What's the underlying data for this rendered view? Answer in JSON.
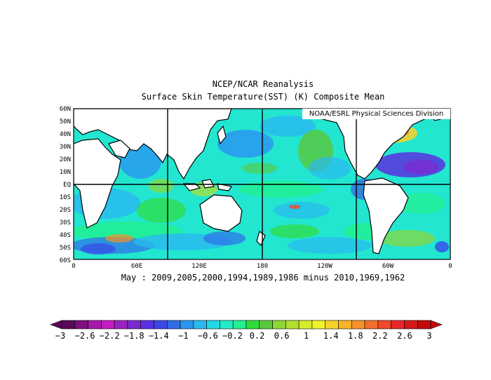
{
  "title_line1": "NCEP/NCAR Reanalysis",
  "title_line2": "Surface Skin Temperature(SST) (K) Composite Mean",
  "credit": "NOAA/ESRL Physical Sciences Division",
  "caption": "May : 2009,2005,2000,1994,1989,1986 minus 2010,1969,1962",
  "lat_labels": [
    "60N",
    "50N",
    "40N",
    "30N",
    "20N",
    "10N",
    "EQ",
    "10S",
    "20S",
    "30S",
    "40S",
    "50S",
    "60S"
  ],
  "lon_labels": [
    "0",
    "60E",
    "120E",
    "180",
    "120W",
    "60W",
    "0"
  ],
  "colorbar": {
    "tick_labels": [
      "-3",
      "-2.6",
      "-2.2",
      "-1.8",
      "-1.4",
      "-1",
      "-0.6",
      "-0.2",
      "0.2",
      "0.6",
      "1",
      "1.4",
      "1.8",
      "2.2",
      "2.6",
      "3"
    ],
    "colors": [
      "#5a0a5a",
      "#7e107e",
      "#a818a8",
      "#c21ec2",
      "#9a24c0",
      "#7a2ad0",
      "#5a30e0",
      "#3a48e8",
      "#2f6ee8",
      "#2a96f0",
      "#2ab8f0",
      "#22d8e6",
      "#22ecc8",
      "#22f08c",
      "#30dc3c",
      "#5ac83a",
      "#8ed636",
      "#b4e030",
      "#d8ec2e",
      "#f2f22a",
      "#f6d22a",
      "#f8b22a",
      "#f6922a",
      "#f46e2a",
      "#f04a2a",
      "#e82828",
      "#d41818",
      "#c00a0a"
    ]
  },
  "legend_items": []
}
